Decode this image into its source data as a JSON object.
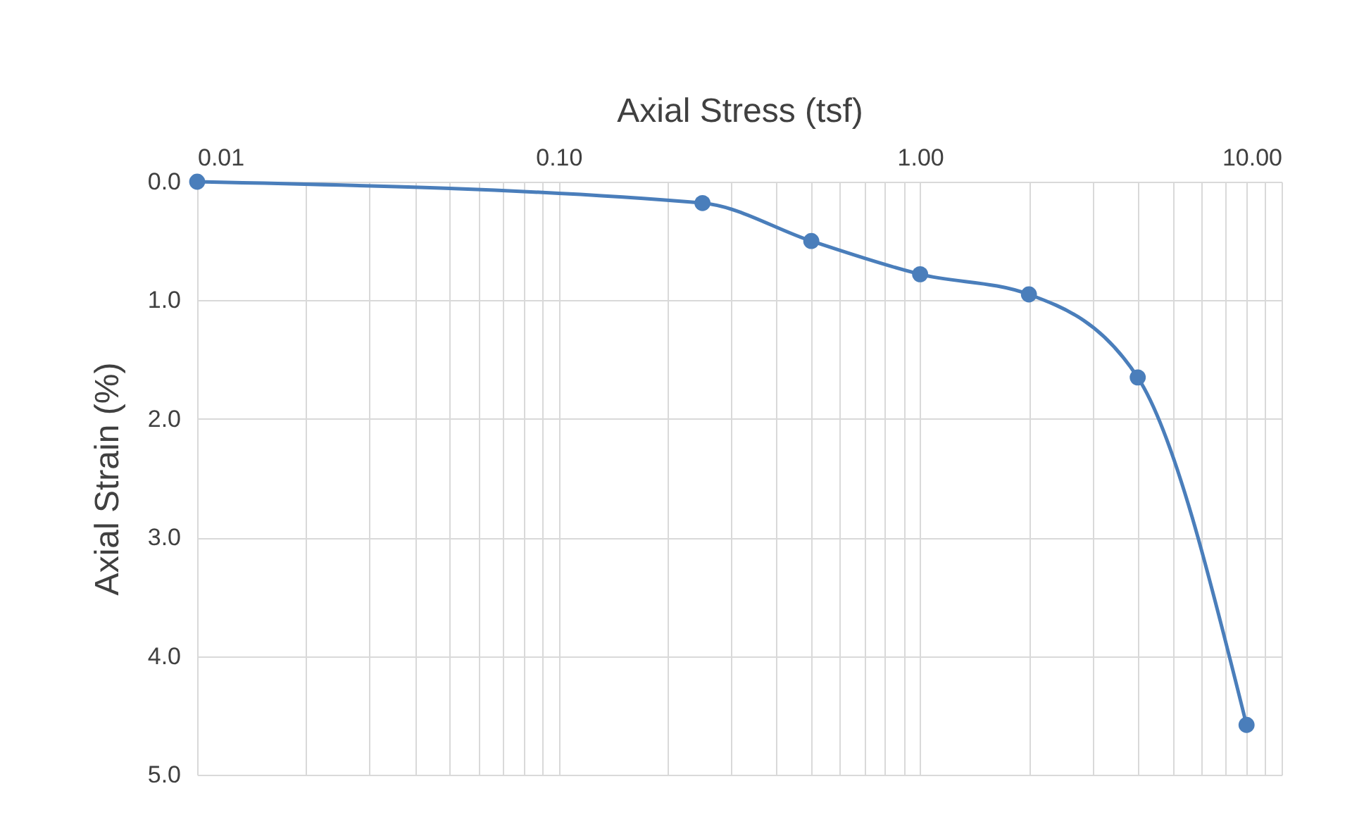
{
  "chart_data": {
    "type": "line",
    "xlabel": "Axial Stress (tsf)",
    "ylabel": "Axial Strain (%)",
    "x": [
      0.01,
      0.25,
      0.5,
      1,
      2,
      4,
      8
    ],
    "series": [
      {
        "color": "#4a7ebb",
        "values": [
          0,
          0.18,
          0.5,
          0.78,
          0.95,
          1.65,
          4.58
        ]
      }
    ],
    "log": "x",
    "xlim": [
      0.01,
      10
    ],
    "xticks": [
      {
        "value": 0.01,
        "label": "0.01"
      },
      {
        "value": 0.02,
        "label": null
      },
      {
        "value": 0.03,
        "label": null
      },
      {
        "value": 0.04,
        "label": null
      },
      {
        "value": 0.05,
        "label": null
      },
      {
        "value": 0.06,
        "label": null
      },
      {
        "value": 0.07,
        "label": null
      },
      {
        "value": 0.08,
        "label": null
      },
      {
        "value": 0.09,
        "label": null
      },
      {
        "value": 0.1,
        "label": "0.10"
      },
      {
        "value": 0.2,
        "label": null
      },
      {
        "value": 0.3,
        "label": null
      },
      {
        "value": 0.4,
        "label": null
      },
      {
        "value": 0.5,
        "label": null
      },
      {
        "value": 0.6,
        "label": null
      },
      {
        "value": 0.7,
        "label": null
      },
      {
        "value": 0.8,
        "label": null
      },
      {
        "value": 0.9,
        "label": null
      },
      {
        "value": 1,
        "label": "1.00"
      },
      {
        "value": 2,
        "label": null
      },
      {
        "value": 3,
        "label": null
      },
      {
        "value": 4,
        "label": null
      },
      {
        "value": 5,
        "label": null
      },
      {
        "value": 6,
        "label": null
      },
      {
        "value": 7,
        "label": null
      },
      {
        "value": 8,
        "label": null
      },
      {
        "value": 9,
        "label": null
      },
      {
        "value": 10,
        "label": "10.00"
      }
    ],
    "ylim": [
      5,
      0
    ],
    "yticks": [
      {
        "value": 0,
        "label": "0.0"
      },
      {
        "value": 1,
        "label": "1.0"
      },
      {
        "value": 2,
        "label": "2.0"
      },
      {
        "value": 3,
        "label": "3.0"
      },
      {
        "value": 4,
        "label": "4.0"
      },
      {
        "value": 5,
        "label": "5.0"
      }
    ],
    "grid": true,
    "marker": "circle",
    "line_style": "solid"
  }
}
